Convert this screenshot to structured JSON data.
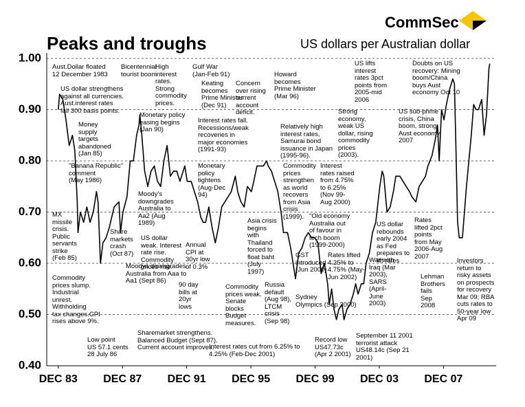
{
  "chart_data": {
    "type": "line",
    "brand": "CommSec",
    "title": "Peaks and troughs",
    "subtitle": "US dollars per Australian dollar",
    "xlim": [
      1983.2,
      2011.2
    ],
    "ylim": [
      0.4,
      1.0
    ],
    "yticks": [
      {
        "value": 1.0,
        "label": "1.00"
      },
      {
        "value": 0.9,
        "label": "0.90"
      },
      {
        "value": 0.8,
        "label": "0.80"
      },
      {
        "value": 0.7,
        "label": "0.70"
      },
      {
        "value": 0.6,
        "label": "0.60"
      },
      {
        "value": 0.5,
        "label": "0.50"
      },
      {
        "value": 0.4,
        "label": "0.40"
      }
    ],
    "xticks": [
      {
        "value": 1983.92,
        "label": "DEC 83"
      },
      {
        "value": 1987.92,
        "label": "DEC 87"
      },
      {
        "value": 1991.92,
        "label": "DEC 91"
      },
      {
        "value": 1995.92,
        "label": "DEC 95"
      },
      {
        "value": 1999.92,
        "label": "DEC 99"
      },
      {
        "value": 2003.92,
        "label": "DEC 03"
      },
      {
        "value": 2007.92,
        "label": "DEC 07"
      }
    ],
    "grid": true,
    "color": "#000000",
    "x": [
      1983.92,
      1984.0,
      1984.2,
      1984.4,
      1984.6,
      1984.8,
      1984.95,
      1985.1,
      1985.15,
      1985.3,
      1985.5,
      1985.7,
      1985.9,
      1986.1,
      1986.3,
      1986.4,
      1986.55,
      1986.7,
      1986.9,
      1987.1,
      1987.4,
      1987.7,
      1987.8,
      1987.95,
      1988.2,
      1988.4,
      1988.6,
      1988.8,
      1988.95,
      1989.0,
      1989.1,
      1989.3,
      1989.5,
      1989.7,
      1989.9,
      1990.1,
      1990.3,
      1990.5,
      1990.7,
      1990.9,
      1991.1,
      1991.3,
      1991.5,
      1991.8,
      1991.95,
      1992.2,
      1992.4,
      1992.6,
      1992.8,
      1992.95,
      1993.1,
      1993.3,
      1993.5,
      1993.7,
      1993.9,
      1994.1,
      1994.3,
      1994.5,
      1994.7,
      1994.95,
      1995.1,
      1995.3,
      1995.5,
      1995.7,
      1995.95,
      1996.1,
      1996.3,
      1996.5,
      1996.7,
      1996.9,
      1997.0,
      1997.2,
      1997.4,
      1997.6,
      1997.8,
      1997.95,
      1998.2,
      1998.4,
      1998.6,
      1998.7,
      1998.9,
      1999.1,
      1999.3,
      1999.5,
      1999.7,
      1999.9,
      2000.1,
      2000.3,
      2000.5,
      2000.7,
      2000.8,
      2000.95,
      2001.1,
      2001.25,
      2001.4,
      2001.6,
      2001.72,
      2001.9,
      2002.1,
      2002.3,
      2002.45,
      2002.6,
      2002.8,
      2002.95,
      2003.1,
      2003.3,
      2003.5,
      2003.7,
      2003.95,
      2004.1,
      2004.2,
      2004.4,
      2004.6,
      2004.8,
      2004.95,
      2005.2,
      2005.4,
      2005.6,
      2005.8,
      2005.95,
      2006.2,
      2006.4,
      2006.6,
      2006.8,
      2006.95,
      2007.2,
      2007.4,
      2007.55,
      2007.65,
      2007.8,
      2007.95,
      2008.1,
      2008.3,
      2008.5,
      2008.6,
      2008.7,
      2008.8,
      2008.9,
      2009.1,
      2009.2,
      2009.35,
      2009.5,
      2009.65,
      2009.8,
      2009.95,
      2010.1,
      2010.3,
      2010.45,
      2010.6,
      2010.75,
      2010.8
    ],
    "values": [
      0.9,
      0.93,
      0.92,
      0.88,
      0.83,
      0.85,
      0.82,
      0.72,
      0.66,
      0.7,
      0.68,
      0.71,
      0.68,
      0.7,
      0.74,
      0.72,
      0.6,
      0.64,
      0.65,
      0.67,
      0.71,
      0.72,
      0.66,
      0.7,
      0.73,
      0.8,
      0.8,
      0.85,
      0.87,
      0.89,
      0.86,
      0.78,
      0.75,
      0.78,
      0.79,
      0.76,
      0.75,
      0.8,
      0.83,
      0.77,
      0.78,
      0.78,
      0.76,
      0.79,
      0.76,
      0.76,
      0.74,
      0.72,
      0.69,
      0.68,
      0.68,
      0.71,
      0.67,
      0.64,
      0.67,
      0.71,
      0.72,
      0.73,
      0.74,
      0.77,
      0.74,
      0.72,
      0.71,
      0.75,
      0.74,
      0.76,
      0.79,
      0.79,
      0.79,
      0.8,
      0.79,
      0.78,
      0.76,
      0.74,
      0.7,
      0.66,
      0.66,
      0.63,
      0.59,
      0.57,
      0.62,
      0.63,
      0.65,
      0.66,
      0.65,
      0.65,
      0.64,
      0.58,
      0.6,
      0.56,
      0.52,
      0.55,
      0.51,
      0.49,
      0.51,
      0.52,
      0.49,
      0.51,
      0.52,
      0.54,
      0.56,
      0.54,
      0.56,
      0.56,
      0.6,
      0.62,
      0.66,
      0.68,
      0.75,
      0.78,
      0.77,
      0.7,
      0.71,
      0.74,
      0.77,
      0.77,
      0.76,
      0.75,
      0.74,
      0.73,
      0.72,
      0.75,
      0.76,
      0.77,
      0.79,
      0.81,
      0.84,
      0.87,
      0.8,
      0.9,
      0.88,
      0.91,
      0.94,
      0.96,
      0.95,
      0.82,
      0.68,
      0.65,
      0.65,
      0.69,
      0.75,
      0.8,
      0.85,
      0.91,
      0.9,
      0.9,
      0.92,
      0.85,
      0.89,
      0.98,
      0.99
    ],
    "annotations": [
      "Aust.Dollar floated\n12 December 1983",
      "US dollar strengthens\nagainst all currencies.\nAust.interest rates\nfall 300 basis points.",
      "Money\nsupply\ntargets\nabandoned\n(Jan 85)",
      "\"Banana Republic\"\ncomment\n(May 1986)",
      "MX\nmissile\ncrisis.\nPublic\nservants\nstrike\n(Feb 85)",
      "Commodity\nprices slump.\nIndustrial\nunrest.\nWithholding\ntax changes.CPI\nrises above 9%.",
      "Low point\nUS 57.1 cents\n28 July 86",
      "Share\nmarkets\ncrash\n(Oct 87)",
      "Moodys downgrades\nAustralia from Aaa to\nAa1 (Sept 86)",
      "Sharemarket strengthens.\nBalanced Budget (Sept 87).\nCurrent account improves.",
      "Bicentennial\ntourist boom",
      "High\ninterest\nrates.\nStrong\ncommodity\nprices.",
      "Monetary policy\neasing begins\n(Jan 90)",
      "Moody's\ndowngrades\nAustralia to\nAa2 (Aug\n1989)",
      "US dollar\nweak. Interest\nrate rise.\nCommodity\nprices rise.",
      "Gulf War\n(Jan-Feb 91)",
      "Keating\nbecomes\nPrime Minister\n(Dec 91)",
      "Interest rates fall.\nRecessions/weak\nrecoveries in\nmajor economies\n(1991-93)",
      "Monetary\npolicy\ntightens\n(Aug-Dec\n94)",
      "Annual\nCPI at\n30yr low\nof 0.3%",
      "90 day\nbills at\n20yr\nlows",
      "Commodity\nprices weak.\nSenate\nblocks\nBudget\nmeasures.",
      "Concern\nover rising\ncurrent\naccount\ndeficit.",
      "Howard\nbecomes\nPrime Minister\n(Mar 96)",
      "Relatively high\ninterest rates,\nSamurai bond\nissuance in Japan\n(1995-96).",
      "Commodity\nprices\nstrengthen\nas world\nrecovers\nfrom Asia\ncrisis\n(1999).",
      "Interest\nrates raised\nfrom 4.75%\nto 6.25%\n(Nov 99-\nAug 2000)",
      "Asia crisis\nbegins\nwith\nThailand\nforced to\nfloat baht\n(July\n1997)",
      "\"Old economy\nAustralia out\nof favour in\ntech boom\n(1999-2000)",
      "GST\nintroduced\n(Jun 2000)",
      "Rates lifted\n4.25% to\n4.75% (May-\nJun 2002)",
      "Russia\ndefault\n(Aug 98),\nLTCM\ncrisis\n(Sep 98)",
      "Sydney\nOlympics (Sep 2000)",
      "Interest rates cut from 6.25% to\n4.25% (Feb-Dec 2001)",
      "Record low\nUS47.73c\n(Apr 2 2001)",
      "September 11 2001\nterrorist attack\nUS48.14c (Sep 21\n2001)",
      "War with\nIraq (Mar\n2003),\nSARS\n(April-\nJune\n2003)",
      "US dollar\nrebounds\nearly 2004\nas Fed\nprepares to\nlift rates",
      "Strong\neconomy,\nweak US\ndollar, rising\ncommodity\nprices\n(2003).",
      "US lifts\ninterest\nrates 3pct\npoints from\n2005-mid\n2006",
      "Doubts on US\nrecovery: Mining\nboom/China\nbuys Aust\neconomy Oct 10",
      "US sub-prime\ncrisis, China\nboom, strong\nAust economy\n2007",
      "Rates\nlifted 2pct\npoints\nfrom May\n2006-Aug\n2007",
      "Lehman\nBrothers\nfails\nSep\n2008",
      "Investors\nreturn to\nrisky assets\non prospects\nfor recovery\nMar 09; RBA\ncuts rates to\n50-year low\nApr 09"
    ]
  }
}
